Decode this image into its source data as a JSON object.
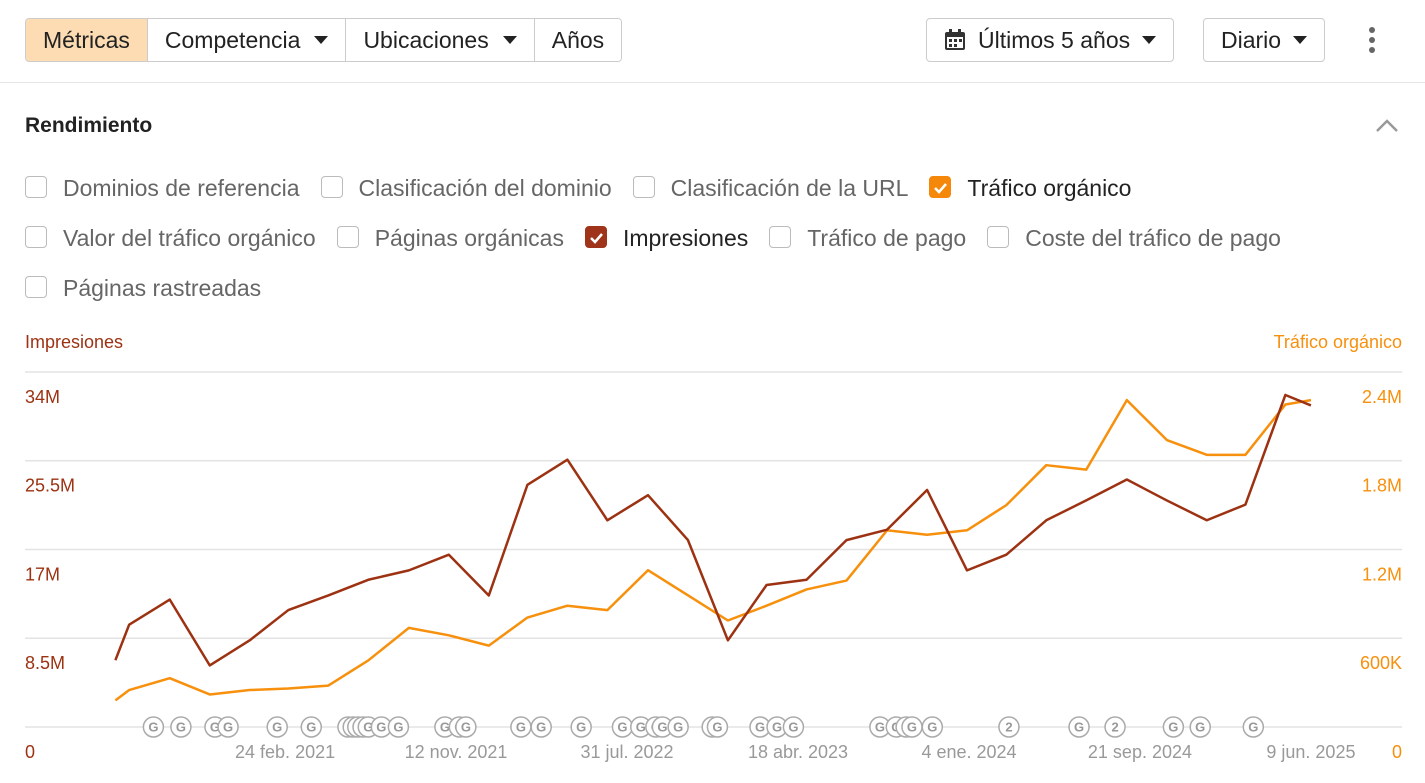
{
  "toolbar": {
    "tabs": [
      {
        "label": "Métricas",
        "active": true,
        "dropdown": false
      },
      {
        "label": "Competencia",
        "active": false,
        "dropdown": true
      },
      {
        "label": "Ubicaciones",
        "active": false,
        "dropdown": true
      },
      {
        "label": "Años",
        "active": false,
        "dropdown": false
      }
    ],
    "range": "Últimos 5 años",
    "interval": "Diario"
  },
  "section": {
    "title": "Rendimiento",
    "metrics": [
      [
        {
          "label": "Dominios de referencia",
          "checked": false
        },
        {
          "label": "Clasificación del dominio",
          "checked": false
        },
        {
          "label": "Clasificación de la URL",
          "checked": false
        },
        {
          "label": "Tráfico orgánico",
          "checked": true,
          "color": "#f5870a"
        }
      ],
      [
        {
          "label": "Valor del tráfico orgánico",
          "checked": false
        },
        {
          "label": "Páginas orgánicas",
          "checked": false
        },
        {
          "label": "Impresiones",
          "checked": true,
          "color": "#a0341a"
        },
        {
          "label": "Tráfico de pago",
          "checked": false
        },
        {
          "label": "Coste del tráfico de pago",
          "checked": false
        }
      ],
      [
        {
          "label": "Páginas rastreadas",
          "checked": false
        }
      ]
    ]
  },
  "chart_data": {
    "type": "line",
    "grid": true,
    "x": [
      "2020-06-10",
      "2020-07-01",
      "2020-09-01",
      "2020-11-01",
      "2021-01-01",
      "2021-03-01",
      "2021-05-01",
      "2021-07-01",
      "2021-09-01",
      "2021-11-01",
      "2022-01-01",
      "2022-03-01",
      "2022-05-01",
      "2022-07-01",
      "2022-09-01",
      "2022-11-01",
      "2023-01-01",
      "2023-03-01",
      "2023-05-01",
      "2023-07-01",
      "2023-09-01",
      "2023-11-01",
      "2024-01-01",
      "2024-03-01",
      "2024-05-01",
      "2024-07-01",
      "2024-09-01",
      "2024-11-01",
      "2025-01-01",
      "2025-03-01",
      "2025-05-01",
      "2025-06-09"
    ],
    "xlim": [
      "2020-01-24",
      "2025-10-26"
    ],
    "xticks": [
      {
        "value": "2021-02-24",
        "label": "24 feb. 2021"
      },
      {
        "value": "2021-11-12",
        "label": "12 nov. 2021"
      },
      {
        "value": "2022-07-31",
        "label": "31 jul. 2022"
      },
      {
        "value": "2023-04-18",
        "label": "18 abr. 2023"
      },
      {
        "value": "2024-01-04",
        "label": "4 ene. 2024"
      },
      {
        "value": "2024-09-21",
        "label": "21 sep. 2024"
      },
      {
        "value": "2025-06-09",
        "label": "9 jun. 2025"
      }
    ],
    "ylim": [
      0,
      34000000
    ],
    "yticks": [
      0,
      {
        "value": 8500000,
        "label": "8.5M"
      },
      {
        "value": 17000000,
        "label": "17M"
      },
      {
        "value": 25500000,
        "label": "25.5M"
      },
      {
        "value": 34000000,
        "label": "34M"
      }
    ],
    "y2lim": [
      0,
      2400000
    ],
    "y2ticks": [
      0,
      {
        "value": 600000,
        "label": "600K"
      },
      {
        "value": 1200000,
        "label": "1.2M"
      },
      {
        "value": 1800000,
        "label": "1.8M"
      },
      {
        "value": 2400000,
        "label": "2.4M"
      }
    ],
    "series": [
      {
        "name": "Impresiones",
        "color": "#9c3212",
        "values": [
          6400000,
          9800000,
          12200000,
          5900000,
          8300000,
          11200000,
          12600000,
          14100000,
          15000000,
          16500000,
          12600000,
          23200000,
          25600000,
          19800000,
          22200000,
          17900000,
          8300000,
          13600000,
          14100000,
          17900000,
          18900000,
          22700000,
          15000000,
          16500000,
          19800000,
          21700000,
          23700000,
          21700000,
          19800000,
          21300000,
          31800000,
          30800000
        ]
      },
      {
        "name": "Tráfico orgánico",
        "color": "#f7900d",
        "axis": "y2",
        "values": [
          180000,
          250000,
          330000,
          220000,
          250000,
          260000,
          280000,
          450000,
          670000,
          620000,
          550000,
          740000,
          820000,
          790000,
          1060000,
          890000,
          720000,
          820000,
          930000,
          990000,
          1330000,
          1300000,
          1330000,
          1500000,
          1770000,
          1740000,
          2210000,
          1940000,
          1840000,
          1840000,
          2180000,
          2210000
        ]
      }
    ],
    "annotations": [
      {
        "x": "2020-08-07",
        "label": "G"
      },
      {
        "x": "2020-09-18",
        "label": "G"
      },
      {
        "x": "2020-11-09",
        "label": "G"
      },
      {
        "x": "2020-11-29",
        "label": "G"
      },
      {
        "x": "2021-02-12",
        "label": "G"
      },
      {
        "x": "2021-04-05",
        "label": "G"
      },
      {
        "x": "2021-05-31",
        "label": "G"
      },
      {
        "x": "2021-06-08",
        "label": "G"
      },
      {
        "x": "2021-06-15",
        "label": "G"
      },
      {
        "x": "2021-06-23",
        "label": "G"
      },
      {
        "x": "2021-07-01",
        "label": "G"
      },
      {
        "x": "2021-07-21",
        "label": "G"
      },
      {
        "x": "2021-08-16",
        "label": "G"
      },
      {
        "x": "2021-10-26",
        "label": "G"
      },
      {
        "x": "2021-11-17",
        "label": "G"
      },
      {
        "x": "2021-11-27",
        "label": "G"
      },
      {
        "x": "2022-02-19",
        "label": "G"
      },
      {
        "x": "2022-03-22",
        "label": "G"
      },
      {
        "x": "2022-05-22",
        "label": "G"
      },
      {
        "x": "2022-07-24",
        "label": "G"
      },
      {
        "x": "2022-08-21",
        "label": "G"
      },
      {
        "x": "2022-09-13",
        "label": "G"
      },
      {
        "x": "2022-09-23",
        "label": "G"
      },
      {
        "x": "2022-10-17",
        "label": "G"
      },
      {
        "x": "2022-12-08",
        "label": "G"
      },
      {
        "x": "2022-12-16",
        "label": "G"
      },
      {
        "x": "2023-02-19",
        "label": "G"
      },
      {
        "x": "2023-03-17",
        "label": "G"
      },
      {
        "x": "2023-04-11",
        "label": "G"
      },
      {
        "x": "2023-08-21",
        "label": "G"
      },
      {
        "x": "2023-09-15",
        "label": "G"
      },
      {
        "x": "2023-09-30",
        "label": "G"
      },
      {
        "x": "2023-10-09",
        "label": "G"
      },
      {
        "x": "2023-11-09",
        "label": "G"
      },
      {
        "x": "2024-03-05",
        "label": "2"
      },
      {
        "x": "2024-06-20",
        "label": "G"
      },
      {
        "x": "2024-08-14",
        "label": "2"
      },
      {
        "x": "2024-11-11",
        "label": "G"
      },
      {
        "x": "2024-12-22",
        "label": "G"
      },
      {
        "x": "2025-03-13",
        "label": "G"
      }
    ]
  }
}
